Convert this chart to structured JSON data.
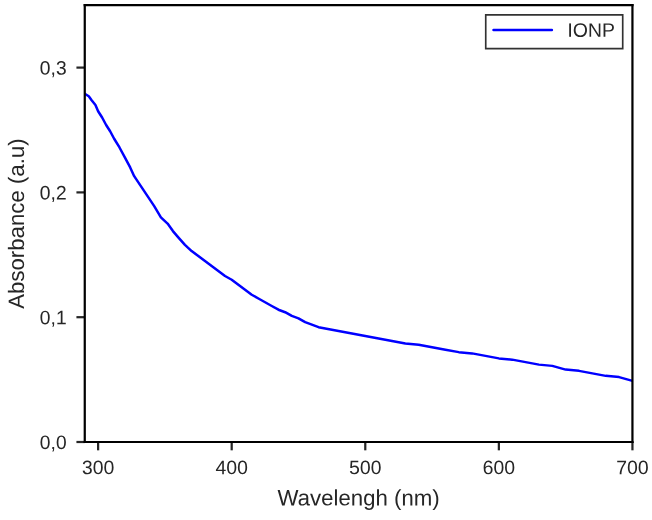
{
  "chart_data": {
    "type": "line",
    "xlabel": "Wavelengh (nm)",
    "ylabel": "Absorbance (a.u)",
    "series": [
      {
        "name": "IONP",
        "color": "#0000ff",
        "x": [
          290,
          293,
          295,
          298,
          300,
          303,
          306,
          309,
          312,
          316,
          320,
          324,
          327,
          332,
          337,
          342,
          347,
          352,
          356,
          360,
          365,
          370,
          375,
          380,
          385,
          390,
          395,
          400,
          405,
          410,
          415,
          420,
          425,
          430,
          435,
          440,
          445,
          450,
          455,
          460,
          465,
          470,
          480,
          490,
          500,
          510,
          520,
          530,
          540,
          550,
          560,
          570,
          580,
          590,
          600,
          610,
          620,
          630,
          640,
          650,
          660,
          670,
          680,
          690,
          700
        ],
        "values": [
          0.279,
          0.277,
          0.274,
          0.27,
          0.265,
          0.26,
          0.254,
          0.249,
          0.243,
          0.236,
          0.228,
          0.22,
          0.213,
          0.205,
          0.197,
          0.189,
          0.18,
          0.175,
          0.169,
          0.164,
          0.158,
          0.153,
          0.149,
          0.145,
          0.141,
          0.137,
          0.133,
          0.13,
          0.126,
          0.122,
          0.118,
          0.115,
          0.112,
          0.109,
          0.106,
          0.104,
          0.101,
          0.099,
          0.096,
          0.094,
          0.092,
          0.091,
          0.089,
          0.087,
          0.085,
          0.083,
          0.081,
          0.079,
          0.078,
          0.076,
          0.074,
          0.072,
          0.071,
          0.069,
          0.067,
          0.066,
          0.064,
          0.062,
          0.061,
          0.058,
          0.057,
          0.055,
          0.053,
          0.052,
          0.049
        ]
      }
    ],
    "xlim": [
      290,
      700
    ],
    "xticks": [
      300,
      400,
      500,
      600,
      700
    ],
    "ylim": [
      0,
      0.35
    ],
    "yticks": [
      {
        "value": 0,
        "label": "0,0"
      },
      {
        "value": 0.1,
        "label": "0,1"
      },
      {
        "value": 0.2,
        "label": "0,2"
      },
      {
        "value": 0.3,
        "label": "0,3"
      }
    ],
    "legend": "top right",
    "grid": false,
    "marker": "none",
    "line_style": "solid"
  }
}
